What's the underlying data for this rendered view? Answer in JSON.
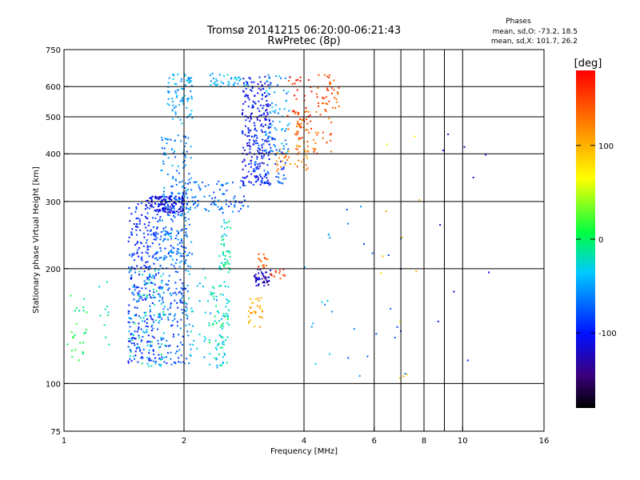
{
  "chart_data": {
    "type": "scatter",
    "title": "Tromsø 20141215 06:20:00-06:21:43",
    "subtitle": "RwPretec (8p)",
    "xlabel": "Frequency [MHz]",
    "ylabel": "Stationary phase Virtual Height [km]",
    "x_scale": "log",
    "y_scale": "log",
    "xlim": [
      1,
      16
    ],
    "ylim": [
      75,
      750
    ],
    "x_ticks": [
      1,
      2,
      4,
      6,
      8,
      10,
      16
    ],
    "x_gridlines": [
      2,
      4,
      6,
      7,
      8,
      9,
      10
    ],
    "y_ticks": [
      75,
      100,
      200,
      300,
      400,
      500,
      600,
      750
    ],
    "y_gridlines": [
      100,
      200,
      300,
      400,
      500,
      600
    ],
    "grid": true,
    "info_box": {
      "title": "Phases",
      "line1": "mean, sd,O: -73.2, 18.5",
      "line2": "mean, sd,X: 101.7, 26.2"
    },
    "colorbar": {
      "label": "[deg]",
      "range": [
        -180,
        180
      ],
      "ticks": [
        100,
        0,
        -100
      ],
      "tick_labels": [
        "100",
        "0",
        "-100"
      ]
    },
    "clusters": [
      {
        "x": [
          1.02,
          1.14
        ],
        "y": [
          110,
          180
        ],
        "phase": 5,
        "n": 25
      },
      {
        "x": [
          1.22,
          1.3
        ],
        "y": [
          115,
          185
        ],
        "phase": -10,
        "n": 10
      },
      {
        "x": [
          1.45,
          1.7
        ],
        "y": [
          113,
          300
        ],
        "phase": -90,
        "n": 260
      },
      {
        "x": [
          1.7,
          2.05
        ],
        "y": [
          112,
          320
        ],
        "phase": -75,
        "n": 260
      },
      {
        "x": [
          1.45,
          1.8
        ],
        "y": [
          110,
          200
        ],
        "phase": -25,
        "n": 90
      },
      {
        "x": [
          1.75,
          2.1
        ],
        "y": [
          200,
          450
        ],
        "phase": -60,
        "n": 150
      },
      {
        "x": [
          1.8,
          2.1
        ],
        "y": [
          480,
          650
        ],
        "phase": -45,
        "n": 80
      },
      {
        "x": [
          1.6,
          2.0
        ],
        "y": [
          280,
          310
        ],
        "phase": -110,
        "n": 120
      },
      {
        "x": [
          2.0,
          2.9
        ],
        "y": [
          280,
          340
        ],
        "phase": -70,
        "n": 90
      },
      {
        "x": [
          2.0,
          2.6
        ],
        "y": [
          110,
          200
        ],
        "phase": -40,
        "n": 70
      },
      {
        "x": [
          2.3,
          2.6
        ],
        "y": [
          110,
          180
        ],
        "phase": -15,
        "n": 55
      },
      {
        "x": [
          2.45,
          2.62
        ],
        "y": [
          195,
          270
        ],
        "phase": -20,
        "n": 45
      },
      {
        "x": [
          2.3,
          2.9
        ],
        "y": [
          600,
          650
        ],
        "phase": -40,
        "n": 40
      },
      {
        "x": [
          2.8,
          3.3
        ],
        "y": [
          330,
          640
        ],
        "phase": -105,
        "n": 230
      },
      {
        "x": [
          3.0,
          3.6
        ],
        "y": [
          330,
          450
        ],
        "phase": -80,
        "n": 70
      },
      {
        "x": [
          3.2,
          3.7
        ],
        "y": [
          400,
          650
        ],
        "phase": -50,
        "n": 60
      },
      {
        "x": [
          3.0,
          3.3
        ],
        "y": [
          180,
          200
        ],
        "phase": -125,
        "n": 45
      },
      {
        "x": [
          2.9,
          3.15
        ],
        "y": [
          140,
          170
        ],
        "phase": 105,
        "n": 30
      },
      {
        "x": [
          3.05,
          3.25
        ],
        "y": [
          200,
          220
        ],
        "phase": 140,
        "n": 15
      },
      {
        "x": [
          3.3,
          3.6
        ],
        "y": [
          185,
          200
        ],
        "phase": 150,
        "n": 12
      },
      {
        "x": [
          3.4,
          4.1
        ],
        "y": [
          360,
          420
        ],
        "phase": 120,
        "n": 40
      },
      {
        "x": [
          3.8,
          4.7
        ],
        "y": [
          400,
          520
        ],
        "phase": 135,
        "n": 60
      },
      {
        "x": [
          4.3,
          4.9
        ],
        "y": [
          520,
          650
        ],
        "phase": 145,
        "n": 40
      },
      {
        "x": [
          3.6,
          4.2
        ],
        "y": [
          430,
          640
        ],
        "phase": 160,
        "n": 35
      },
      {
        "x": [
          4.0,
          5.0
        ],
        "y": [
          95,
          260
        ],
        "phase": -50,
        "n": 12
      },
      {
        "x": [
          5.0,
          7.2
        ],
        "y": [
          90,
          300
        ],
        "phase": -70,
        "n": 18
      },
      {
        "x": [
          6.2,
          8.0
        ],
        "y": [
          100,
          450
        ],
        "phase": 90,
        "n": 12
      },
      {
        "x": [
          8.6,
          12.0
        ],
        "y": [
          110,
          500
        ],
        "phase": -110,
        "n": 10
      }
    ]
  }
}
